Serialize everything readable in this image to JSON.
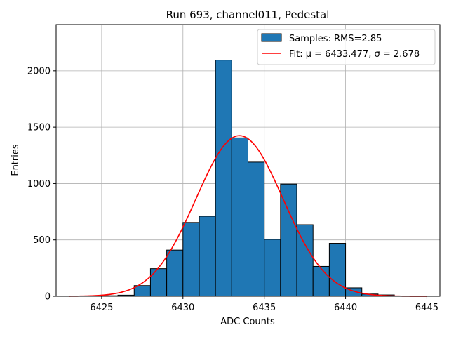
{
  "chart_data": {
    "type": "bar",
    "title": "Run 693, channel011, Pedestal",
    "xlabel": "ADC Counts",
    "ylabel": "Entries",
    "xlim": [
      6422.2,
      6445.8
    ],
    "ylim": [
      0,
      2410
    ],
    "xticks": [
      6425,
      6430,
      6435,
      6440,
      6445
    ],
    "yticks": [
      0,
      500,
      1000,
      1500,
      2000
    ],
    "grid": true,
    "legend_position": "top-right",
    "bar_color": "#1f77b4",
    "fit_color": "#ff0000",
    "histogram": {
      "name": "Samples: RMS=2.85",
      "bin_width": 1,
      "bins": [
        {
          "x": 6425,
          "count": 5
        },
        {
          "x": 6426,
          "count": 10
        },
        {
          "x": 6427,
          "count": 95
        },
        {
          "x": 6428,
          "count": 245
        },
        {
          "x": 6429,
          "count": 410
        },
        {
          "x": 6430,
          "count": 655
        },
        {
          "x": 6431,
          "count": 710
        },
        {
          "x": 6432,
          "count": 2095
        },
        {
          "x": 6433,
          "count": 1405
        },
        {
          "x": 6434,
          "count": 1190
        },
        {
          "x": 6435,
          "count": 505
        },
        {
          "x": 6436,
          "count": 995
        },
        {
          "x": 6437,
          "count": 635
        },
        {
          "x": 6438,
          "count": 265
        },
        {
          "x": 6439,
          "count": 470
        },
        {
          "x": 6440,
          "count": 75
        },
        {
          "x": 6441,
          "count": 20
        },
        {
          "x": 6442,
          "count": 12
        }
      ]
    },
    "fit": {
      "name": "Fit: μ = 6433.477, σ = 2.678",
      "mu": 6433.477,
      "sigma": 2.678,
      "amplitude": 1425,
      "x_range": [
        6423,
        6445
      ]
    }
  }
}
